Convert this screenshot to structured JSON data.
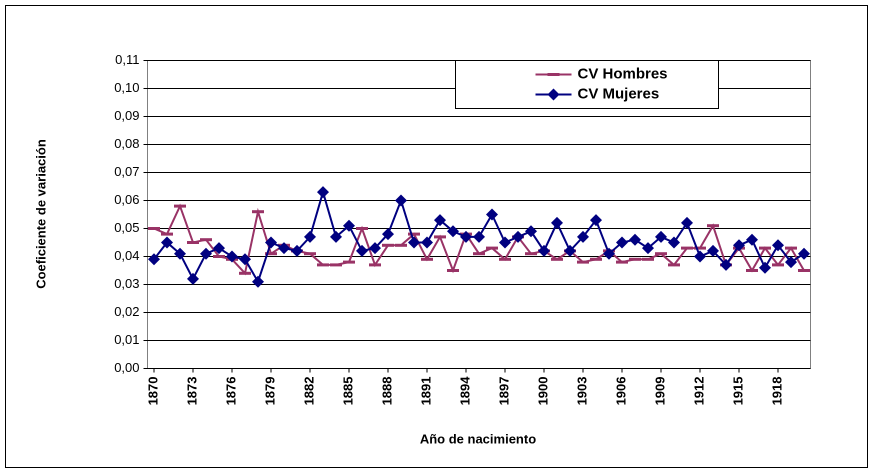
{
  "chart_data": {
    "type": "line",
    "x_label": "Año de nacimiento",
    "y_label": "Coeficiente de variación",
    "x": [
      1870,
      1871,
      1872,
      1873,
      1874,
      1875,
      1876,
      1877,
      1878,
      1879,
      1880,
      1881,
      1882,
      1883,
      1884,
      1885,
      1886,
      1887,
      1888,
      1889,
      1890,
      1891,
      1892,
      1893,
      1894,
      1895,
      1896,
      1897,
      1898,
      1899,
      1900,
      1901,
      1902,
      1903,
      1904,
      1905,
      1906,
      1907,
      1908,
      1909,
      1910,
      1911,
      1912,
      1913,
      1914,
      1915,
      1916,
      1917,
      1918,
      1919,
      1920
    ],
    "series": [
      {
        "name": "CV Hombres",
        "color": "#993366",
        "marker": "dash",
        "values": [
          0.05,
          0.048,
          0.058,
          0.045,
          0.046,
          0.04,
          0.039,
          0.034,
          0.056,
          0.041,
          0.044,
          0.042,
          0.041,
          0.037,
          0.037,
          0.038,
          0.05,
          0.037,
          0.044,
          0.044,
          0.048,
          0.039,
          0.047,
          0.035,
          0.048,
          0.041,
          0.043,
          0.039,
          0.047,
          0.041,
          0.042,
          0.039,
          0.042,
          0.038,
          0.039,
          0.042,
          0.038,
          0.039,
          0.039,
          0.041,
          0.037,
          0.043,
          0.043,
          0.051,
          0.037,
          0.043,
          0.035,
          0.043,
          0.037,
          0.043,
          0.035
        ]
      },
      {
        "name": "CV Mujeres",
        "color": "#000080",
        "marker": "diamond",
        "values": [
          0.039,
          0.045,
          0.041,
          0.032,
          0.041,
          0.043,
          0.04,
          0.039,
          0.031,
          0.045,
          0.043,
          0.042,
          0.047,
          0.063,
          0.047,
          0.051,
          0.042,
          0.043,
          0.048,
          0.06,
          0.045,
          0.045,
          0.053,
          0.049,
          0.047,
          0.047,
          0.055,
          0.045,
          0.047,
          0.049,
          0.042,
          0.052,
          0.042,
          0.047,
          0.053,
          0.041,
          0.045,
          0.046,
          0.043,
          0.047,
          0.045,
          0.052,
          0.04,
          0.042,
          0.037,
          0.044,
          0.046,
          0.036,
          0.044,
          0.038,
          0.041
        ]
      }
    ],
    "xlim": [
      1869.5,
      1920.5
    ],
    "xticks": [
      1870,
      1873,
      1876,
      1879,
      1882,
      1885,
      1888,
      1891,
      1894,
      1897,
      1900,
      1903,
      1906,
      1909,
      1912,
      1915,
      1918
    ],
    "ylim": [
      0,
      0.11
    ],
    "yticks": [
      {
        "value": 0,
        "label": "0,00"
      },
      {
        "value": 0.01,
        "label": "0,01"
      },
      {
        "value": 0.02,
        "label": "0,02"
      },
      {
        "value": 0.03,
        "label": "0,03"
      },
      {
        "value": 0.04,
        "label": "0,04"
      },
      {
        "value": 0.05,
        "label": "0,05"
      },
      {
        "value": 0.06,
        "label": "0,06"
      },
      {
        "value": 0.07,
        "label": "0,07"
      },
      {
        "value": 0.08,
        "label": "0,08"
      },
      {
        "value": 0.09,
        "label": "0,09"
      },
      {
        "value": 0.1,
        "label": "0,10"
      },
      {
        "value": 0.11,
        "label": "0,11"
      }
    ],
    "grid": true,
    "legend": "upper right"
  }
}
